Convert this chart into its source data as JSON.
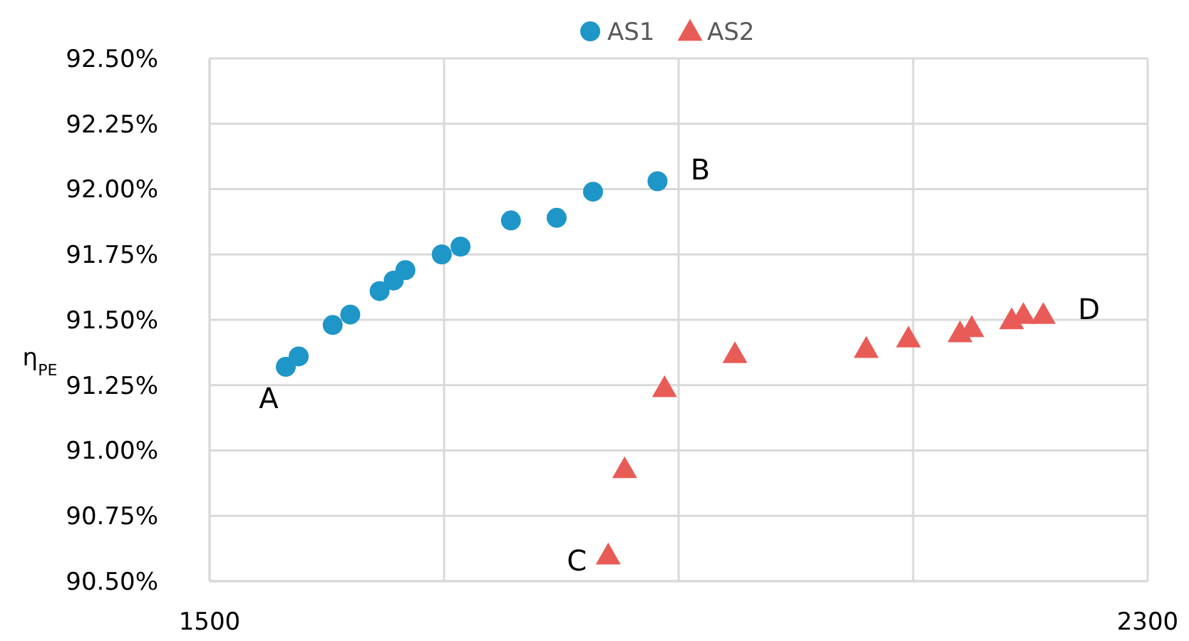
{
  "chart_data": {
    "type": "scatter",
    "ylabel": "η$_{PE}$",
    "xlim": [
      1500,
      2300
    ],
    "xticks": [
      1500,
      {
        "value": 1700,
        "label": null
      },
      {
        "value": 1900,
        "label": null
      },
      {
        "value": 2100,
        "label": null
      },
      2300
    ],
    "ylim": [
      90.5,
      92.5
    ],
    "yticks": [
      {
        "value": 90.5,
        "label": "90.50%"
      },
      {
        "value": 90.75,
        "label": "90.75%"
      },
      {
        "value": 91,
        "label": "91.00%"
      },
      {
        "value": 91.25,
        "label": "91.25%"
      },
      {
        "value": 91.5,
        "label": "91.50%"
      },
      {
        "value": 91.75,
        "label": "91.75%"
      },
      {
        "value": 92,
        "label": "92.00%"
      },
      {
        "value": 92.25,
        "label": "92.25%"
      },
      {
        "value": 92.5,
        "label": "92.50%"
      }
    ],
    "grid": true,
    "legend": "top",
    "series": [
      {
        "name": "AS1",
        "color": "#1f96c8",
        "marker": "circle",
        "x": [
          1565,
          1576,
          1605,
          1620,
          1645,
          1657,
          1667,
          1698,
          1714,
          1757,
          1796,
          1827,
          1882
        ],
        "values": [
          91.32,
          91.36,
          91.48,
          91.52,
          91.61,
          91.65,
          91.69,
          91.75,
          91.78,
          91.88,
          91.89,
          91.99,
          92.03
        ]
      },
      {
        "name": "AS2",
        "color": "#e95b57",
        "marker": "triangle",
        "x": [
          1840,
          1854,
          1888,
          1948,
          2060,
          2096,
          2140,
          2150,
          2184,
          2194,
          2211
        ],
        "values": [
          90.6,
          90.93,
          91.24,
          91.37,
          91.39,
          91.43,
          91.45,
          91.47,
          91.5,
          91.52,
          91.52
        ]
      }
    ],
    "annotations": [
      {
        "text": "A",
        "x": 1565,
        "y": 91.32
      },
      {
        "text": "B",
        "x": 1882,
        "y": 92.03
      },
      {
        "text": "C",
        "x": 1840,
        "y": 90.6
      },
      {
        "text": "D",
        "x": 2211,
        "y": 91.52
      }
    ]
  }
}
